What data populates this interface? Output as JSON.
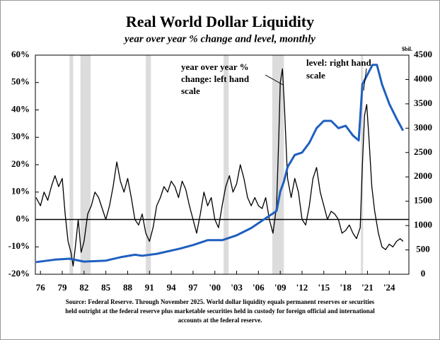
{
  "chart_data": {
    "type": "line",
    "title": "Real World Dollar Liquidity",
    "subtitle": "year over year % change and level, monthly",
    "y2_unit_label": "$bil.",
    "annotations": [
      "year over year %",
      "change: left hand",
      "scale",
      "level: right hand",
      "scale"
    ],
    "source": [
      "Source: Federal Reserve. Through November 2025. World dollar liquidity equals permanent reserves or securities",
      "held outright at the federal reserve plus marketable securities held in custody for foreign official and international",
      "accounts at the federal reserve."
    ],
    "xlim": [
      1975.3,
      2026.7
    ],
    "xticks": [
      {
        "value": 1976,
        "label": "76"
      },
      {
        "value": 1979,
        "label": "79"
      },
      {
        "value": 1982,
        "label": "82"
      },
      {
        "value": 1985,
        "label": "85"
      },
      {
        "value": 1988,
        "label": "88"
      },
      {
        "value": 1991,
        "label": "91"
      },
      {
        "value": 1994,
        "label": "94"
      },
      {
        "value": 1997,
        "label": "97"
      },
      {
        "value": 2000,
        "label": "'00"
      },
      {
        "value": 2003,
        "label": "'03"
      },
      {
        "value": 2006,
        "label": "'06"
      },
      {
        "value": 2009,
        "label": "'09"
      },
      {
        "value": 2012,
        "label": "'12"
      },
      {
        "value": 2015,
        "label": "'15"
      },
      {
        "value": 2018,
        "label": "'18"
      },
      {
        "value": 2021,
        "label": "'21"
      },
      {
        "value": 2024,
        "label": "'24"
      }
    ],
    "ylim": [
      -20,
      60
    ],
    "yticks": [
      {
        "value": -20,
        "label": "-20%"
      },
      {
        "value": -10,
        "label": "-10%"
      },
      {
        "value": 0,
        "label": "0%"
      },
      {
        "value": 10,
        "label": "10%"
      },
      {
        "value": 20,
        "label": "20%"
      },
      {
        "value": 30,
        "label": "30%"
      },
      {
        "value": 40,
        "label": "40%"
      },
      {
        "value": 50,
        "label": "50%"
      },
      {
        "value": 60,
        "label": "60%"
      }
    ],
    "y2lim": [
      0,
      4500
    ],
    "y2ticks": [
      0,
      500,
      1000,
      1500,
      2000,
      2500,
      3000,
      3500,
      4000,
      4500
    ],
    "zero_line": 0,
    "recessions": [
      [
        1980.0,
        1980.5
      ],
      [
        1981.5,
        1982.9
      ],
      [
        1990.5,
        1991.2
      ],
      [
        2001.2,
        2001.9
      ],
      [
        2007.9,
        2009.5
      ],
      [
        2020.1,
        2020.4
      ]
    ],
    "recession_color": "#dcdcdc",
    "series": [
      {
        "color": "#000000",
        "width": 1.3,
        "x": [
          1975.4,
          1976,
          1976.5,
          1977,
          1977.5,
          1978,
          1978.5,
          1979,
          1979.4,
          1979.8,
          1980.2,
          1980.5,
          1980.8,
          1981.2,
          1981.6,
          1982,
          1982.5,
          1983,
          1983.5,
          1984,
          1984.5,
          1985,
          1985.5,
          1986,
          1986.5,
          1987,
          1987.5,
          1988,
          1988.5,
          1989,
          1989.5,
          1990,
          1990.5,
          1991,
          1991.5,
          1992,
          1992.5,
          1993,
          1993.5,
          1994,
          1994.5,
          1995,
          1995.5,
          1996,
          1996.5,
          1997,
          1997.5,
          1998,
          1998.5,
          1999,
          1999.5,
          2000,
          2000.5,
          2001,
          2001.5,
          2002,
          2002.5,
          2003,
          2003.5,
          2004,
          2004.5,
          2005,
          2005.5,
          2006,
          2006.5,
          2007,
          2007.5,
          2008,
          2008.5,
          2008.8,
          2009,
          2009.3,
          2009.6,
          2010,
          2010.5,
          2011,
          2011.5,
          2012,
          2012.5,
          2013,
          2013.5,
          2014,
          2014.5,
          2015,
          2015.5,
          2016,
          2016.5,
          2017,
          2017.5,
          2018,
          2018.5,
          2019,
          2019.5,
          2020,
          2020.3,
          2020.6,
          2020.9,
          2021.2,
          2021.6,
          2022,
          2022.5,
          2023,
          2023.5,
          2024,
          2024.5,
          2025,
          2025.5,
          2025.9
        ],
        "values": [
          8,
          5,
          10,
          7,
          12,
          16,
          12,
          15,
          2,
          -8,
          -12,
          -17,
          -10,
          0,
          -12,
          -8,
          2,
          5,
          10,
          8,
          4,
          0,
          5,
          12,
          21,
          14,
          10,
          15,
          8,
          0,
          -2,
          2,
          -5,
          -8,
          -3,
          5,
          8,
          12,
          10,
          14,
          12,
          8,
          14,
          11,
          5,
          0,
          -5,
          2,
          10,
          5,
          8,
          0,
          -3,
          5,
          12,
          16,
          10,
          13,
          20,
          15,
          8,
          5,
          8,
          5,
          4,
          8,
          0,
          -5,
          5,
          30,
          50,
          55,
          40,
          15,
          8,
          15,
          10,
          0,
          -2,
          5,
          15,
          19,
          10,
          5,
          0,
          3,
          2,
          0,
          -5,
          -4,
          -2,
          -5,
          -7,
          -3,
          20,
          38,
          42,
          30,
          12,
          3,
          -5,
          -10,
          -11,
          -9,
          -10,
          -8,
          -7,
          -8
        ]
      },
      {
        "color": "#1f5fbf",
        "width": 3,
        "axis": "y2",
        "x": [
          1975.4,
          1978,
          1980,
          1982,
          1985,
          1987,
          1989,
          1990,
          1992,
          1995,
          1997,
          1999,
          2001,
          2003,
          2005,
          2007,
          2008,
          2008.5,
          2009,
          2009.5,
          2010,
          2011,
          2012,
          2013,
          2014,
          2015,
          2016,
          2017,
          2018,
          2019,
          2019.8,
          2020.3,
          2021,
          2021.7,
          2022.3,
          2023,
          2024,
          2025,
          2025.9
        ],
        "values": [
          250,
          300,
          320,
          260,
          280,
          350,
          400,
          380,
          420,
          520,
          600,
          700,
          700,
          800,
          950,
          1150,
          1250,
          1300,
          1700,
          1900,
          2200,
          2450,
          2500,
          2700,
          3000,
          3150,
          3150,
          3000,
          3050,
          2850,
          2750,
          3900,
          4100,
          4300,
          4300,
          3900,
          3500,
          3200,
          2950
        ]
      }
    ]
  }
}
